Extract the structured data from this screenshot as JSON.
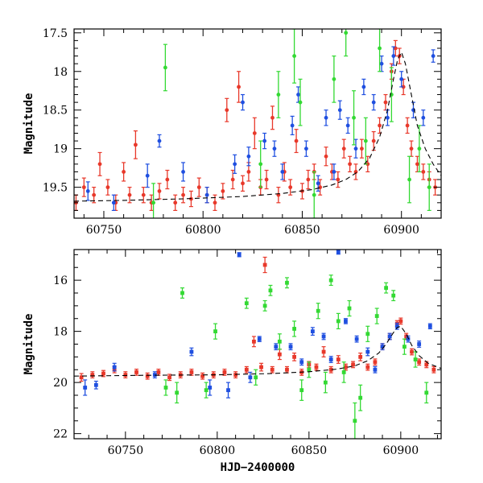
{
  "chart_data": [
    {
      "type": "scatter",
      "ylabel": "Magnitude",
      "xlabel": "",
      "xlim": [
        60735,
        60920
      ],
      "ylim": [
        19.9,
        17.45
      ],
      "y_inverted": true,
      "x_tick_labels": [
        "60750",
        "60800",
        "60850",
        "60900"
      ],
      "x_ticks": [
        60750,
        60800,
        60850,
        60900
      ],
      "y_tick_labels": [
        "17.5",
        "18",
        "18.5",
        "19",
        "19.5"
      ],
      "y_ticks": [
        17.5,
        18,
        18.5,
        19,
        19.5
      ],
      "series": [
        {
          "color": "#e8382a",
          "style": "points-with-errorbars",
          "description_key": "red",
          "x": [
            60736,
            60740,
            60745,
            60748,
            60752,
            60756,
            60760,
            60763,
            60766,
            60770,
            60774,
            60778,
            60782,
            60786,
            60790,
            60794,
            60798,
            60802,
            60806,
            60810,
            60812,
            60815,
            60818,
            60820,
            60823,
            60826,
            60829,
            60832,
            60835,
            60838,
            60841,
            60844,
            60847,
            60850,
            60853,
            60856,
            60859,
            60862,
            60865,
            60868,
            60871,
            60874,
            60877,
            60880,
            60883,
            60886,
            60889,
            60892,
            60895,
            60897,
            60899,
            60901,
            60903,
            60905,
            60908,
            60911,
            60914,
            60917
          ],
          "y": [
            19.7,
            19.5,
            19.6,
            19.2,
            19.5,
            19.7,
            19.3,
            19.6,
            18.95,
            19.6,
            19.7,
            19.55,
            19.4,
            19.7,
            19.6,
            19.65,
            19.5,
            19.6,
            19.7,
            19.55,
            18.5,
            19.4,
            18.2,
            19.45,
            19.3,
            18.8,
            19.5,
            19.4,
            18.6,
            19.6,
            19.3,
            19.5,
            18.9,
            19.55,
            19.4,
            19.3,
            19.5,
            19.1,
            19.3,
            19.4,
            19.0,
            19.2,
            19.3,
            19.0,
            19.2,
            18.9,
            18.7,
            18.4,
            18.0,
            17.7,
            17.8,
            18.2,
            18.7,
            19.0,
            19.2,
            19.3,
            19.4,
            19.5
          ],
          "err": [
            0.1,
            0.12,
            0.1,
            0.15,
            0.1,
            0.1,
            0.12,
            0.1,
            0.18,
            0.1,
            0.1,
            0.1,
            0.12,
            0.1,
            0.1,
            0.1,
            0.12,
            0.1,
            0.1,
            0.1,
            0.15,
            0.12,
            0.2,
            0.1,
            0.12,
            0.2,
            0.1,
            0.12,
            0.15,
            0.1,
            0.12,
            0.1,
            0.15,
            0.1,
            0.12,
            0.1,
            0.1,
            0.12,
            0.1,
            0.1,
            0.12,
            0.1,
            0.1,
            0.12,
            0.1,
            0.12,
            0.1,
            0.1,
            0.1,
            0.1,
            0.1,
            0.1,
            0.1,
            0.1,
            0.1,
            0.1,
            0.1,
            0.1
          ]
        },
        {
          "color": "#1f4fe0",
          "style": "points-with-errorbars",
          "description_key": "blue",
          "x": [
            60742,
            60755,
            60772,
            60778,
            60790,
            60802,
            60816,
            60820,
            60823,
            60831,
            60836,
            60840,
            60845,
            60848,
            60852,
            60858,
            60862,
            60866,
            60869,
            60873,
            60877,
            60881,
            60886,
            60890,
            60893,
            60896,
            60900,
            60906,
            60911,
            60916
          ],
          "y": [
            19.55,
            19.7,
            19.35,
            18.9,
            19.3,
            19.6,
            19.2,
            18.4,
            19.1,
            18.9,
            19.0,
            19.3,
            18.7,
            18.3,
            19.0,
            19.45,
            18.6,
            19.3,
            18.5,
            18.7,
            19.0,
            18.2,
            18.4,
            17.9,
            18.6,
            17.8,
            18.1,
            18.5,
            18.6,
            17.8
          ],
          "err": [
            0.12,
            0.1,
            0.15,
            0.08,
            0.12,
            0.1,
            0.12,
            0.1,
            0.12,
            0.1,
            0.1,
            0.1,
            0.12,
            0.1,
            0.1,
            0.1,
            0.1,
            0.1,
            0.12,
            0.1,
            0.12,
            0.1,
            0.1,
            0.1,
            0.1,
            0.12,
            0.1,
            0.1,
            0.1,
            0.08
          ]
        },
        {
          "color": "#33d933",
          "style": "points-with-errorbars",
          "description_key": "green",
          "x": [
            60775,
            60781,
            60829,
            60838,
            60846,
            60849,
            60856,
            60866,
            60872,
            60876,
            60882,
            60889,
            60895,
            60904,
            60909,
            60914
          ],
          "y": [
            19.7,
            17.95,
            19.2,
            18.3,
            17.8,
            18.4,
            19.6,
            18.1,
            17.5,
            18.6,
            18.9,
            17.7,
            18.3,
            19.4,
            19.0,
            19.5
          ],
          "err": [
            0.25,
            0.3,
            0.3,
            0.3,
            0.35,
            0.3,
            0.3,
            0.3,
            0.3,
            0.35,
            0.3,
            0.3,
            0.35,
            0.3,
            0.3,
            0.3
          ]
        }
      ],
      "model_curve": {
        "color": "#000000",
        "dash": true,
        "x": [
          60735,
          60760,
          60790,
          60820,
          60840,
          60855,
          60865,
          60872,
          60878,
          60884,
          60889,
          60893,
          60896,
          60898,
          60900,
          60902,
          60905,
          60908,
          60912,
          60916,
          60920
        ],
        "y": [
          19.68,
          19.67,
          19.65,
          19.62,
          19.58,
          19.53,
          19.47,
          19.4,
          19.3,
          19.12,
          18.85,
          18.5,
          18.1,
          17.85,
          17.75,
          17.9,
          18.3,
          18.7,
          19.0,
          19.2,
          19.35
        ]
      }
    },
    {
      "type": "scatter",
      "ylabel": "Magnitude",
      "xlabel": "HJD−2400000",
      "xlim": [
        60722,
        60922
      ],
      "ylim": [
        22.2,
        14.8
      ],
      "y_inverted": true,
      "x_tick_labels": [
        "60750",
        "60800",
        "60850",
        "60900"
      ],
      "x_ticks": [
        60750,
        60800,
        60850,
        60900
      ],
      "y_tick_labels": [
        "16",
        "18",
        "20",
        "22"
      ],
      "y_ticks": [
        16,
        18,
        20,
        22
      ],
      "series": [
        {
          "color": "#e8382a",
          "style": "points-with-errorbars",
          "description_key": "red",
          "x": [
            60726,
            60732,
            60738,
            60744,
            60750,
            60756,
            60762,
            60768,
            60774,
            60780,
            60786,
            60792,
            60798,
            60804,
            60810,
            60816,
            60820,
            60824,
            60826,
            60830,
            60834,
            60838,
            60842,
            60846,
            60850,
            60854,
            60858,
            60862,
            60866,
            60870,
            60874,
            60878,
            60882,
            60886,
            60890,
            60894,
            60898,
            60900,
            60903,
            60906,
            60910,
            60914,
            60918
          ],
          "y": [
            19.8,
            19.7,
            19.65,
            19.5,
            19.7,
            19.6,
            19.75,
            19.6,
            19.8,
            19.7,
            19.6,
            19.75,
            19.7,
            19.6,
            19.7,
            19.5,
            18.4,
            19.4,
            15.4,
            19.5,
            18.9,
            19.5,
            19.0,
            19.6,
            19.3,
            19.4,
            18.8,
            19.5,
            19.1,
            19.4,
            19.3,
            19.0,
            19.4,
            19.2,
            18.6,
            18.2,
            17.7,
            17.6,
            18.2,
            18.8,
            19.2,
            19.3,
            19.5
          ],
          "err": [
            0.15,
            0.12,
            0.12,
            0.12,
            0.12,
            0.12,
            0.12,
            0.12,
            0.12,
            0.12,
            0.12,
            0.12,
            0.12,
            0.12,
            0.12,
            0.12,
            0.2,
            0.15,
            0.3,
            0.12,
            0.2,
            0.12,
            0.15,
            0.12,
            0.12,
            0.12,
            0.2,
            0.12,
            0.15,
            0.12,
            0.12,
            0.15,
            0.12,
            0.12,
            0.12,
            0.12,
            0.12,
            0.12,
            0.12,
            0.12,
            0.12,
            0.12,
            0.12
          ]
        },
        {
          "color": "#1f4fe0",
          "style": "points-with-errorbars",
          "description_key": "blue",
          "x": [
            60728,
            60734,
            60744,
            60766,
            60786,
            60796,
            60806,
            60812,
            60818,
            60823,
            60832,
            60840,
            60846,
            60852,
            60858,
            60862,
            60866,
            60870,
            60876,
            60882,
            60886,
            60890,
            60894,
            60898,
            60904,
            60910,
            60916
          ],
          "y": [
            20.2,
            20.1,
            19.4,
            19.7,
            18.8,
            20.2,
            20.3,
            15.0,
            19.8,
            18.3,
            18.6,
            18.6,
            19.2,
            18.0,
            18.2,
            19.1,
            14.9,
            17.6,
            18.3,
            18.8,
            19.5,
            18.6,
            18.2,
            17.8,
            18.3,
            18.5,
            17.8
          ],
          "err": [
            0.3,
            0.15,
            0.15,
            0.12,
            0.15,
            0.3,
            0.3,
            0.08,
            0.2,
            0.1,
            0.12,
            0.12,
            0.12,
            0.15,
            0.12,
            0.12,
            0.08,
            0.1,
            0.12,
            0.15,
            0.12,
            0.12,
            0.12,
            0.12,
            0.12,
            0.12,
            0.1
          ]
        },
        {
          "color": "#33d933",
          "style": "points-with-errorbars",
          "description_key": "green",
          "x": [
            60772,
            60778,
            60781,
            60794,
            60799,
            60816,
            60821,
            60826,
            60829,
            60834,
            60838,
            60842,
            60846,
            60850,
            60855,
            60859,
            60862,
            60866,
            60869,
            60872,
            60875,
            60878,
            60882,
            60887,
            60892,
            60896,
            60902,
            60908,
            60914
          ],
          "y": [
            20.2,
            20.4,
            16.5,
            20.3,
            18.0,
            16.9,
            19.8,
            17.0,
            16.4,
            18.4,
            16.1,
            17.9,
            20.3,
            19.5,
            17.2,
            20.0,
            16.0,
            17.6,
            19.6,
            17.1,
            21.5,
            20.6,
            18.1,
            17.4,
            16.3,
            16.6,
            18.6,
            19.1,
            20.4
          ],
          "err": [
            0.3,
            0.4,
            0.2,
            0.3,
            0.3,
            0.2,
            0.3,
            0.2,
            0.2,
            0.3,
            0.2,
            0.3,
            0.4,
            0.3,
            0.3,
            0.4,
            0.2,
            0.3,
            0.4,
            0.3,
            0.7,
            0.5,
            0.3,
            0.3,
            0.2,
            0.2,
            0.3,
            0.3,
            0.4
          ]
        }
      ],
      "model_curve": {
        "color": "#000000",
        "dash": true,
        "x": [
          60722,
          60760,
          60800,
          60830,
          60850,
          60865,
          60875,
          60882,
          60888,
          60892,
          60896,
          60898,
          60900,
          60903,
          60906,
          60910,
          60915,
          60922
        ],
        "y": [
          19.75,
          19.72,
          19.7,
          19.65,
          19.58,
          19.48,
          19.35,
          19.15,
          18.85,
          18.5,
          18.05,
          17.85,
          17.8,
          18.1,
          18.55,
          18.95,
          19.25,
          19.45
        ]
      }
    }
  ]
}
